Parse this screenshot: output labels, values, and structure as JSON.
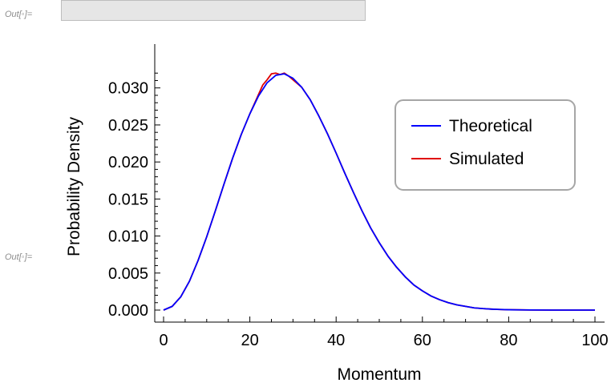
{
  "notebook": {
    "out_label_1": "Out[◦]=",
    "out_label_2": "Out[◦]="
  },
  "chart_data": {
    "type": "line",
    "title": "",
    "xlabel": "Momentum",
    "ylabel": "Probability Density",
    "xlim": [
      0,
      100
    ],
    "ylim": [
      0.0,
      0.033
    ],
    "x_ticks": [
      0,
      20,
      40,
      60,
      80,
      100
    ],
    "x_tick_labels": [
      "0",
      "20",
      "40",
      "60",
      "80",
      "100"
    ],
    "y_ticks": [
      0.0,
      0.005,
      0.01,
      0.015,
      0.02,
      0.025,
      0.03
    ],
    "y_tick_labels": [
      "0.000",
      "0.005",
      "0.010",
      "0.015",
      "0.020",
      "0.025",
      "0.030"
    ],
    "grid": false,
    "legend_position": "top-right",
    "series": [
      {
        "name": "Theoretical",
        "color": "#0000ff",
        "x": [
          0,
          2,
          4,
          6,
          8,
          10,
          12,
          14,
          16,
          18,
          20,
          22,
          24,
          26,
          28,
          30,
          32,
          34,
          36,
          38,
          40,
          42,
          44,
          46,
          48,
          50,
          52,
          54,
          56,
          58,
          60,
          62,
          64,
          66,
          68,
          70,
          72,
          74,
          76,
          78,
          80,
          85,
          90,
          95,
          100
        ],
        "values": [
          0.0,
          0.0005,
          0.0018,
          0.0039,
          0.0067,
          0.0099,
          0.0134,
          0.017,
          0.0205,
          0.0237,
          0.0265,
          0.0289,
          0.0307,
          0.0317,
          0.0319,
          0.0313,
          0.0301,
          0.0284,
          0.0262,
          0.0238,
          0.0212,
          0.0185,
          0.0159,
          0.0134,
          0.0111,
          0.0091,
          0.0073,
          0.0058,
          0.0045,
          0.0034,
          0.0026,
          0.0019,
          0.0014,
          0.001,
          0.0007,
          0.0005,
          0.0003,
          0.0002,
          0.00013,
          8e-05,
          5e-05,
          1e-05,
          0.0,
          0.0,
          0.0
        ]
      },
      {
        "name": "Simulated",
        "color": "#e00000",
        "x": [
          0,
          2,
          4,
          6,
          8,
          10,
          12,
          14,
          16,
          18,
          20,
          22,
          23,
          24,
          25,
          26,
          27,
          28,
          29,
          30,
          32,
          34,
          36,
          38,
          40,
          42,
          44,
          46,
          48,
          50,
          52,
          54,
          56,
          58,
          60,
          62,
          64,
          66,
          68,
          70,
          72,
          74,
          76,
          78,
          80,
          85,
          90,
          95,
          100
        ],
        "values": [
          0.0,
          0.0005,
          0.0018,
          0.0039,
          0.0067,
          0.0099,
          0.0134,
          0.017,
          0.0205,
          0.0237,
          0.0265,
          0.0291,
          0.0304,
          0.0311,
          0.0319,
          0.032,
          0.0318,
          0.032,
          0.0316,
          0.0311,
          0.0301,
          0.0284,
          0.0262,
          0.0238,
          0.0212,
          0.0185,
          0.0159,
          0.0134,
          0.0111,
          0.0091,
          0.0073,
          0.0058,
          0.0045,
          0.0034,
          0.0026,
          0.0019,
          0.0014,
          0.001,
          0.0007,
          0.0005,
          0.0003,
          0.0002,
          0.00013,
          8e-05,
          5e-05,
          1e-05,
          0.0,
          0.0,
          0.0
        ]
      }
    ]
  }
}
